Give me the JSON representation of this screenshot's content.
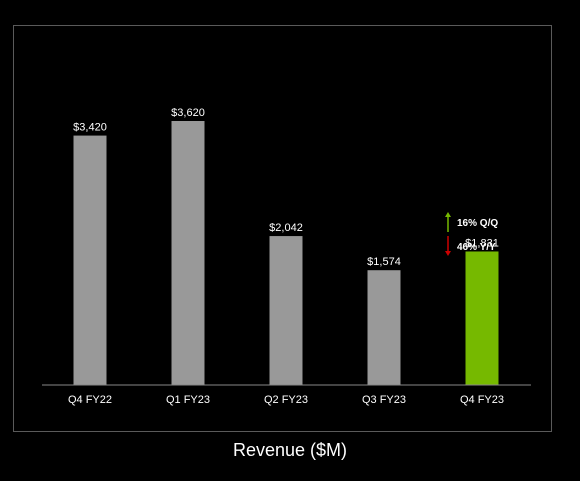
{
  "chart_data": {
    "type": "bar",
    "title": "Revenue ($M)",
    "categories": [
      "Q4 FY22",
      "Q1 FY23",
      "Q2 FY23",
      "Q3 FY23",
      "Q4 FY23"
    ],
    "values": [
      3420,
      3620,
      2042,
      1574,
      1831
    ],
    "value_labels": [
      "$3,420",
      "$3,620",
      "$2,042",
      "$1,574",
      "$1,831"
    ],
    "highlight_index": 4,
    "ylim": [
      0,
      4200
    ],
    "grid": false,
    "colors": {
      "bar": "#999999",
      "highlight": "#76b900",
      "up": "#76b900",
      "down": "#cc0000",
      "text": "#ffffff",
      "axis": "#888888"
    },
    "annotations": [
      {
        "text": "16% Q/Q",
        "direction": "up"
      },
      {
        "text": "46% Y/Y",
        "direction": "down"
      }
    ]
  }
}
